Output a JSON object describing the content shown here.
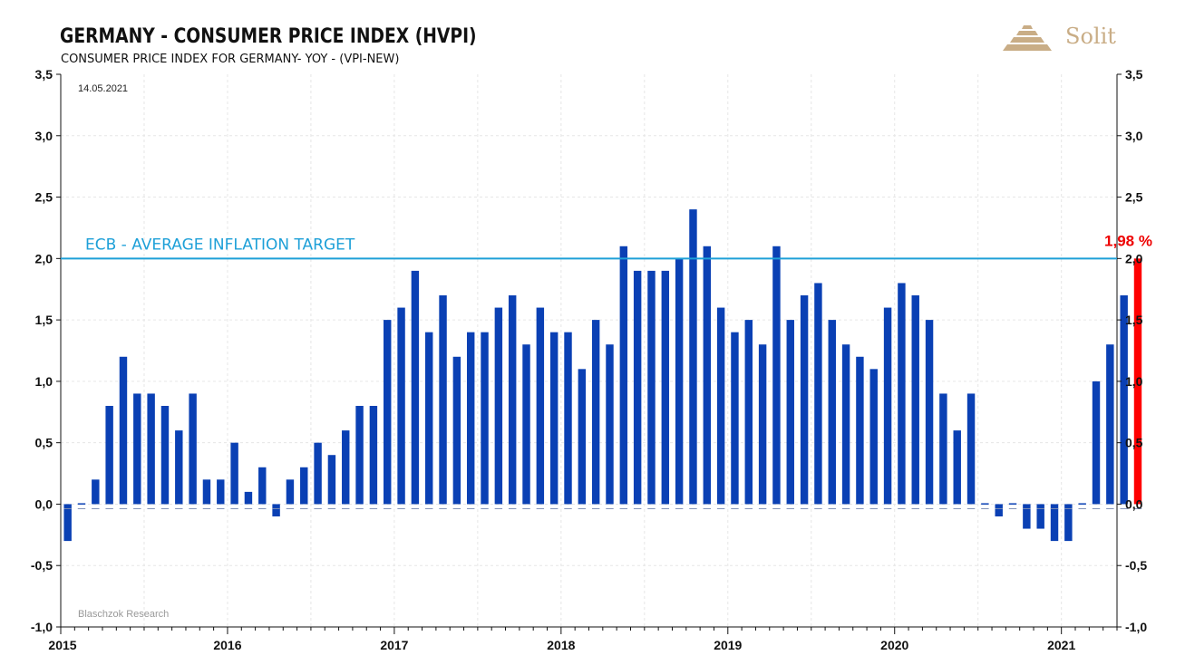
{
  "header": {
    "title": "GERMANY - CONSUMER PRICE INDEX (HVPI)",
    "subtitle": "CONSUMER PRICE INDEX FOR GERMANY- YOY - (VPI-NEW)",
    "date": "14.05.2021",
    "logo_text": "Solit",
    "logo_color": "#c9ad86",
    "source": "Blaschzok Research"
  },
  "chart_data": {
    "type": "bar",
    "title": "GERMANY - CONSUMER PRICE INDEX (HVPI)",
    "subtitle": "CONSUMER PRICE INDEX FOR GERMANY- YOY - (VPI-NEW)",
    "xlabel": "",
    "ylabel": "",
    "ylim": [
      -1.0,
      3.5
    ],
    "yticks": [
      "3,5",
      "3,0",
      "2,5",
      "2,0",
      "1,5",
      "1,0",
      "0,5",
      "0,0",
      "-0,5",
      "-1,0"
    ],
    "ytick_values": [
      3.5,
      3.0,
      2.5,
      2.0,
      1.5,
      1.0,
      0.5,
      0.0,
      -0.5,
      -1.0
    ],
    "x_start": "2015-01",
    "xticks": [
      "2015",
      "2016",
      "2017",
      "2018",
      "2019",
      "2020",
      "2021"
    ],
    "bar_color": "#0a40b4",
    "highlight_color": "#ff0000",
    "grid": true,
    "values": [
      -0.3,
      0.0,
      0.2,
      0.8,
      1.2,
      0.9,
      0.9,
      0.8,
      0.6,
      0.9,
      0.2,
      0.2,
      0.5,
      0.1,
      0.3,
      -0.1,
      0.2,
      0.3,
      0.5,
      0.4,
      0.6,
      0.8,
      0.8,
      1.5,
      1.6,
      1.9,
      1.4,
      1.7,
      1.2,
      1.4,
      1.4,
      1.6,
      1.7,
      1.3,
      1.6,
      1.4,
      1.4,
      1.1,
      1.5,
      1.3,
      2.1,
      1.9,
      1.9,
      1.9,
      2.0,
      2.4,
      2.1,
      1.6,
      1.4,
      1.5,
      1.3,
      2.1,
      1.5,
      1.7,
      1.8,
      1.5,
      1.3,
      1.2,
      1.1,
      1.6,
      1.8,
      1.7,
      1.5,
      0.9,
      0.6,
      0.9,
      0.0,
      -0.1,
      0.0,
      -0.2,
      -0.2,
      -0.3,
      -0.3,
      0.0,
      1.0,
      1.3,
      1.7,
      2.0
    ],
    "reference_line": {
      "value": 2.0,
      "label": "ECB - AVERAGE INFLATION TARGET",
      "color": "#1ea0d8"
    },
    "last_value_label": "1,98 %"
  }
}
